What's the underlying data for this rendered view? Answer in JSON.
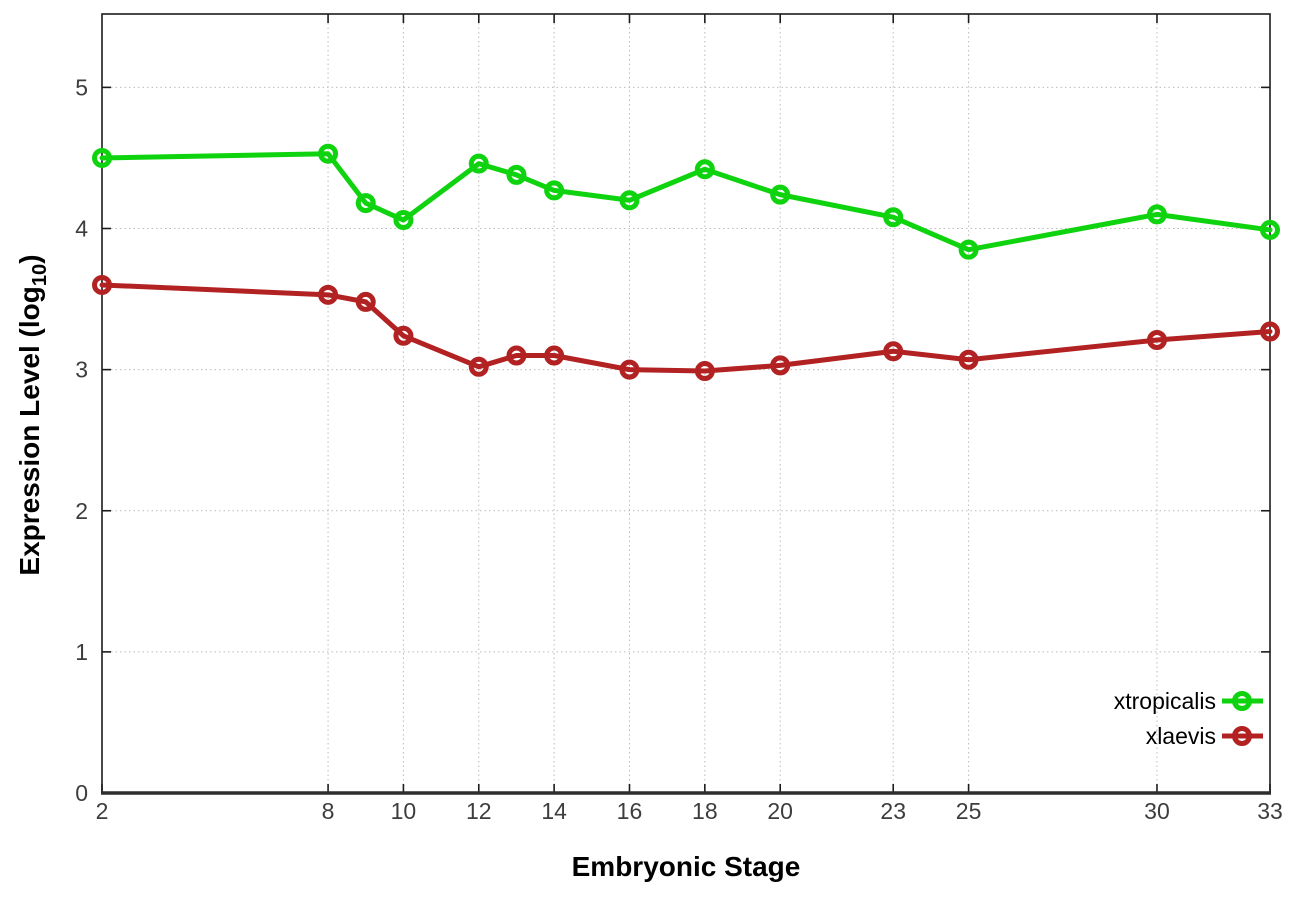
{
  "chart_data": {
    "type": "line",
    "title": "",
    "xlabel": "Embryonic Stage",
    "ylabel": {
      "text": "Expression Level (log",
      "sub": "10",
      "suffix": ")"
    },
    "x": [
      2,
      8,
      9,
      10,
      12,
      13,
      14,
      16,
      18,
      20,
      23,
      25,
      30,
      33
    ],
    "series": [
      {
        "name": "xtropicalis",
        "color": "#0ed30e",
        "marker": "open-circle",
        "values": [
          4.5,
          4.53,
          4.18,
          4.06,
          4.46,
          4.38,
          4.27,
          4.2,
          4.42,
          4.24,
          4.08,
          3.85,
          4.1,
          3.99
        ]
      },
      {
        "name": "xlaevis",
        "color": "#b22222",
        "marker": "open-circle",
        "values": [
          3.6,
          3.53,
          3.48,
          3.24,
          3.02,
          3.1,
          3.1,
          3.0,
          2.99,
          3.03,
          3.13,
          3.07,
          3.21,
          3.27
        ]
      }
    ],
    "xticks": [
      2,
      8,
      10,
      12,
      14,
      16,
      18,
      20,
      23,
      25,
      30,
      33
    ],
    "yticks": [
      0,
      1,
      2,
      3,
      4,
      5
    ],
    "xlim": [
      2,
      33
    ],
    "ylim": [
      0,
      5.52
    ],
    "grid": true,
    "grid_style": "dotted",
    "legend_position": "inside-bottom-right",
    "background": "#ffffff"
  }
}
